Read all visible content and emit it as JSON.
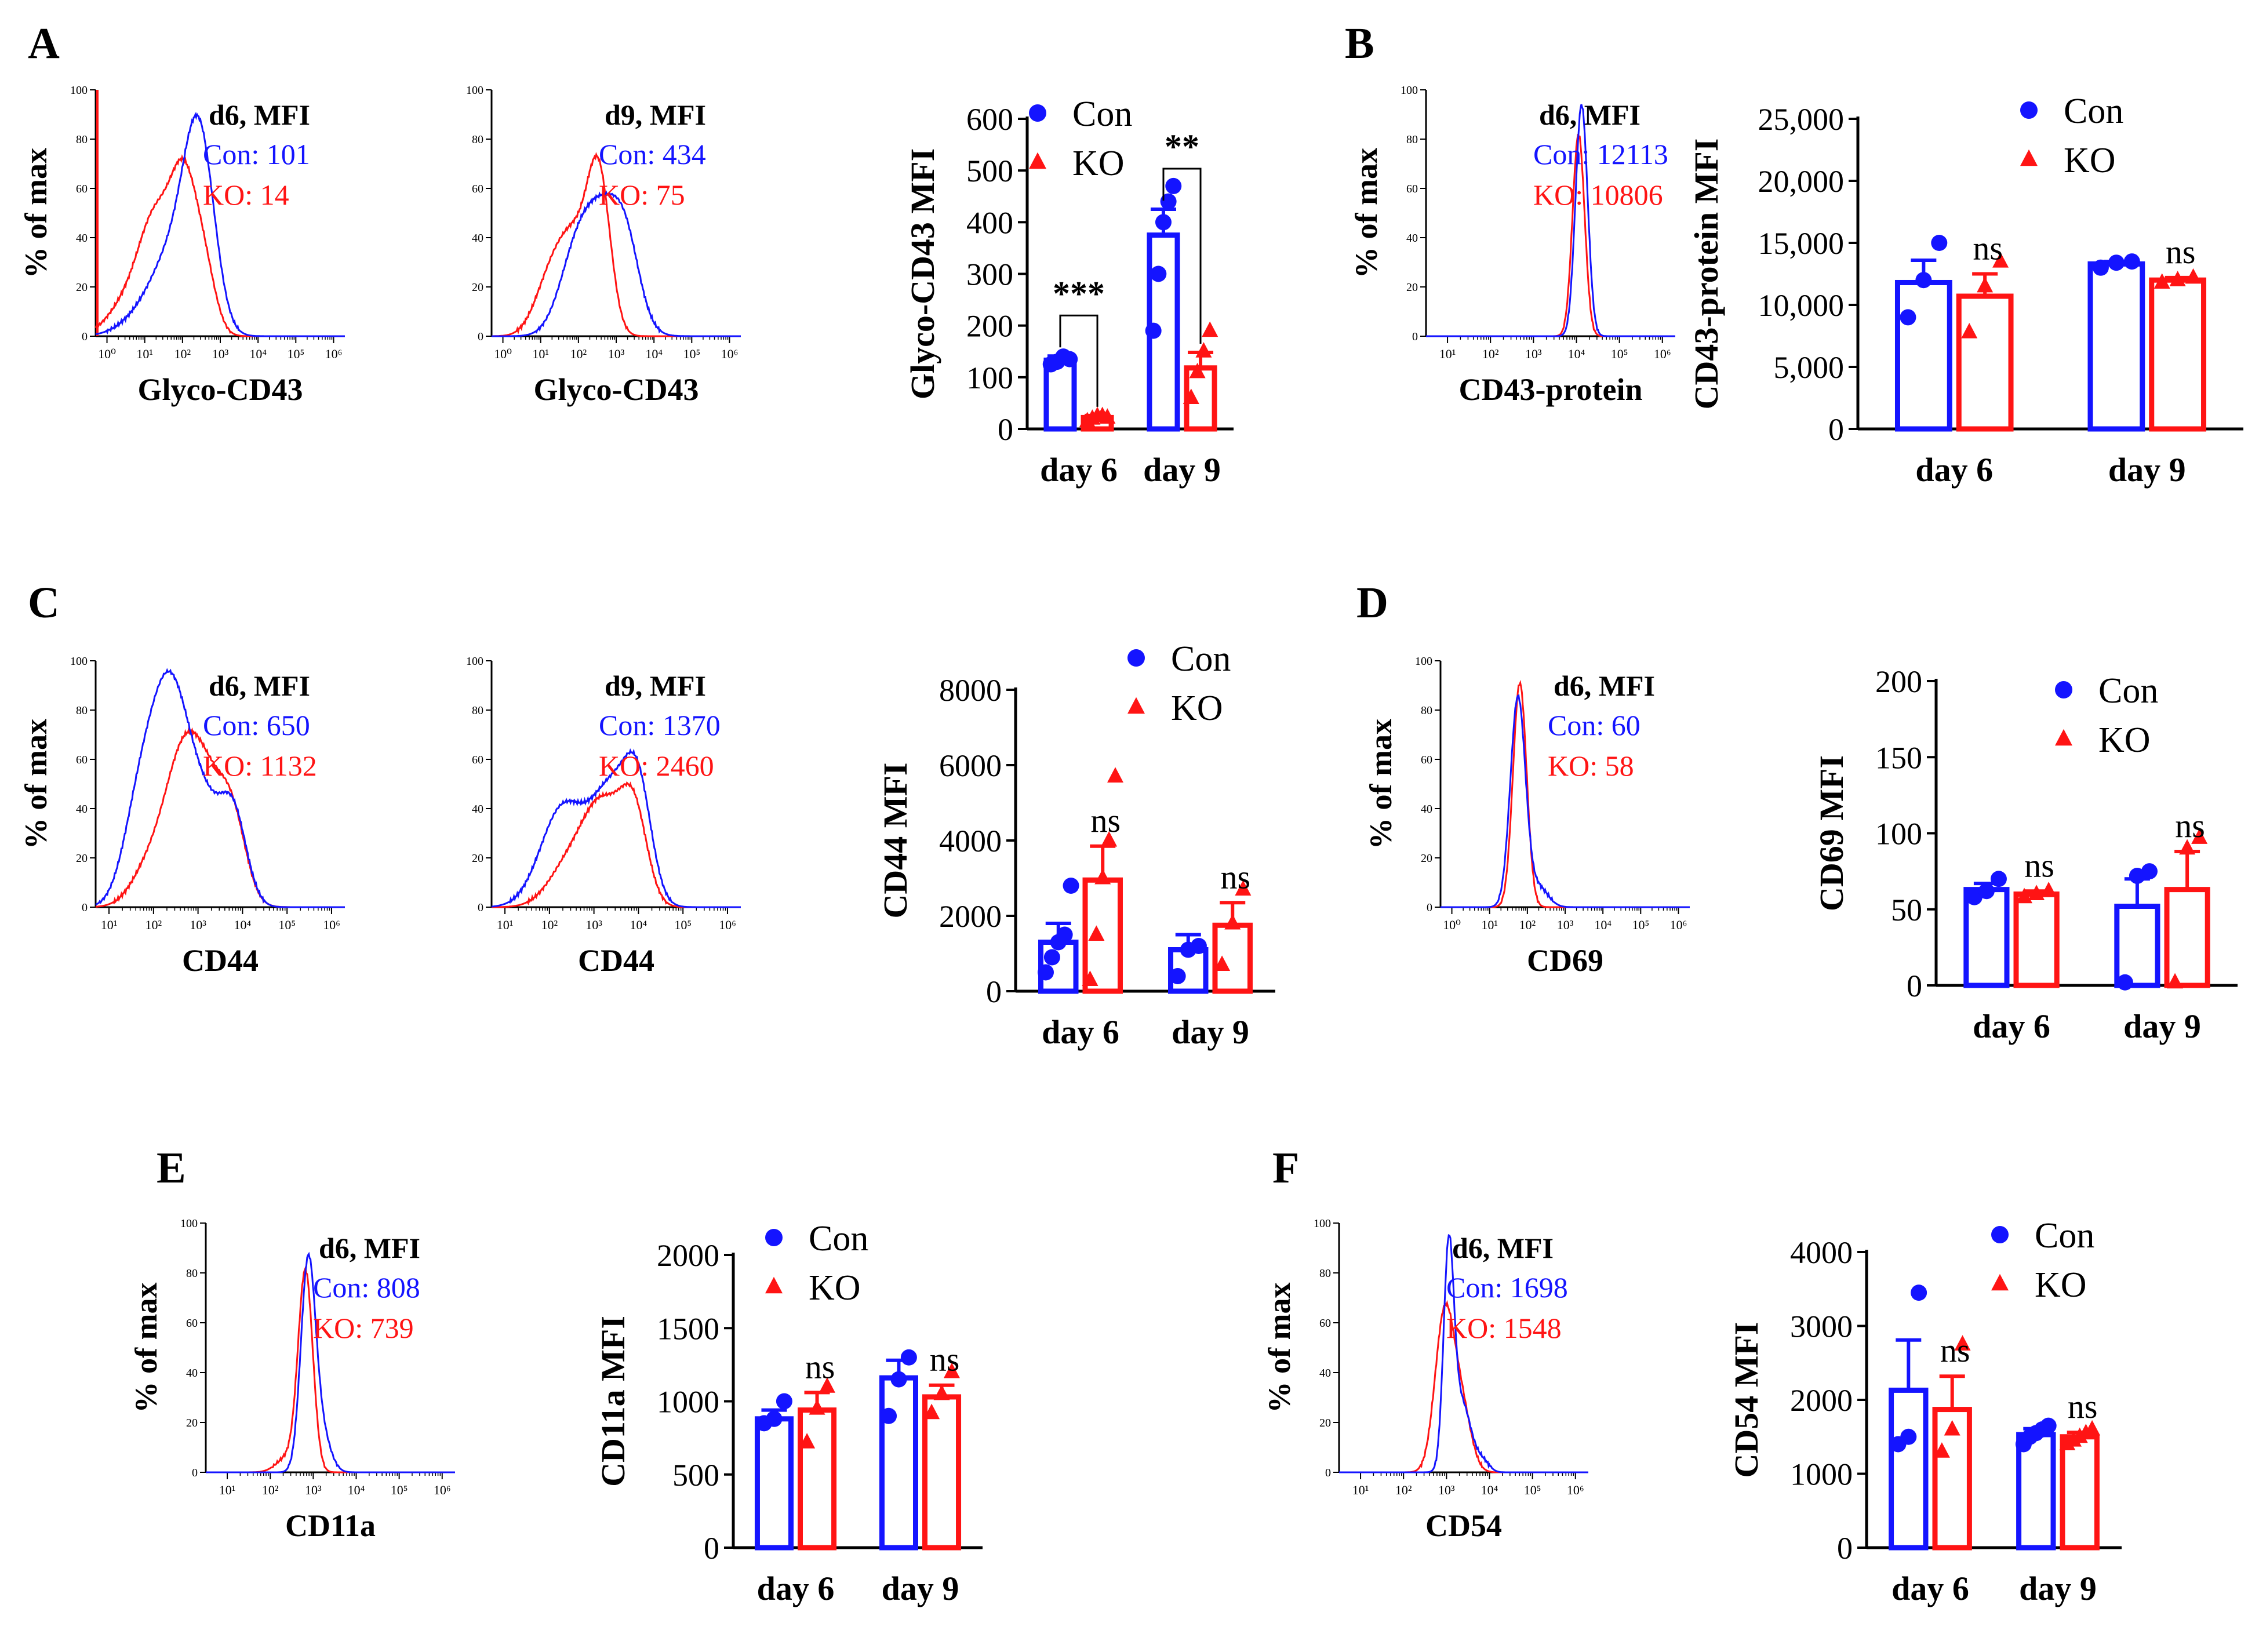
{
  "colors": {
    "con": "#1414ff",
    "ko": "#ff1414",
    "axis": "#000000"
  },
  "panels": [
    {
      "letter": "A",
      "histograms": [
        {
          "day_label": "d6, MFI",
          "con_label": "Con: 101",
          "ko_label": "KO:   14",
          "xlabel": "Glyco-CD43",
          "ylabel": "% of max",
          "x_log_range": [
            -0.3,
            6.3
          ],
          "x_tick_labels": [
            "10⁰",
            "10¹",
            "10²",
            "10³",
            "10⁴",
            "10⁵",
            "10⁶"
          ],
          "y_tick_labels": [
            "0",
            "20",
            "40",
            "60",
            "80",
            "100"
          ],
          "con_peaks": [
            {
              "x": 2.45,
              "h": 73,
              "w": 0.4
            },
            {
              "x": 1.8,
              "h": 30,
              "w": 0.55
            },
            {
              "x": 1.0,
              "h": 8,
              "w": 0.6
            }
          ],
          "ko_peaks": [
            {
              "x": 2.05,
              "h": 56,
              "w": 0.35
            },
            {
              "x": 1.3,
              "h": 45,
              "w": 0.45
            },
            {
              "x": 0.5,
              "h": 12,
              "w": 0.5
            },
            {
              "x": 2.6,
              "h": 22,
              "w": 0.3
            }
          ],
          "con_spike": 0,
          "ko_spike": 100
        },
        {
          "day_label": "d9, MFI",
          "con_label": "Con: 434",
          "ko_label": "KO:   75",
          "xlabel": "Glyco-CD43",
          "ylabel": "",
          "x_log_range": [
            -0.3,
            6.3
          ],
          "x_tick_labels": [
            "10⁰",
            "10¹",
            "10²",
            "10³",
            "10⁴",
            "10⁵",
            "10⁶"
          ],
          "y_tick_labels": [
            "0",
            "20",
            "40",
            "60",
            "80",
            "100"
          ],
          "con_peaks": [
            {
              "x": 2.7,
              "h": 48,
              "w": 0.55
            },
            {
              "x": 1.9,
              "h": 25,
              "w": 0.45
            },
            {
              "x": 3.3,
              "h": 20,
              "w": 0.35
            }
          ],
          "ko_peaks": [
            {
              "x": 2.55,
              "h": 58,
              "w": 0.3
            },
            {
              "x": 1.9,
              "h": 38,
              "w": 0.45
            },
            {
              "x": 1.2,
              "h": 18,
              "w": 0.4
            }
          ],
          "con_spike": 0,
          "ko_spike": 0
        }
      ],
      "bars": {
        "ylabel": "Glyco-CD43 MFI",
        "ylim": [
          0,
          600
        ],
        "y_tick_labels": [
          "0",
          "100",
          "200",
          "300",
          "400",
          "500",
          "600"
        ],
        "yticks": [
          0,
          100,
          200,
          300,
          400,
          500,
          600
        ],
        "categories": [
          "day 6",
          "day 9"
        ],
        "legend": [
          "Con",
          "KO"
        ],
        "series": [
          {
            "name": "Con",
            "values": [
              133,
              375
            ],
            "sem": [
              8,
              50
            ],
            "points": [
              [
                125,
                130,
                140,
                135
              ],
              [
                190,
                300,
                400,
                440,
                470
              ]
            ]
          },
          {
            "name": "KO",
            "values": [
              22,
              118
            ],
            "sem": [
              4,
              30
            ],
            "points": [
              [
                15,
                20,
                25,
                25,
                22
              ],
              [
                60,
                110,
                150,
                190
              ]
            ]
          }
        ],
        "annotations": [
          {
            "text": "***",
            "group": 0
          },
          {
            "text": "**",
            "group": 1
          }
        ]
      }
    },
    {
      "letter": "B",
      "histograms": [
        {
          "day_label": "d6, MFI",
          "con_label": "Con: 12113",
          "ko_label": "KO:  10806",
          "xlabel": "CD43-protein",
          "ylabel": "% of max",
          "x_log_range": [
            0.5,
            6.3
          ],
          "x_tick_labels": [
            "10¹",
            "10²",
            "10³",
            "10⁴",
            "10⁵",
            "10⁶"
          ],
          "y_tick_labels": [
            "0",
            "20",
            "40",
            "60",
            "80",
            "100"
          ],
          "con_peaks": [
            {
              "x": 4.12,
              "h": 94,
              "w": 0.14
            }
          ],
          "ko_peaks": [
            {
              "x": 4.05,
              "h": 82,
              "w": 0.14
            }
          ],
          "con_spike": 0,
          "ko_spike": 0
        }
      ],
      "bars": {
        "ylabel": "CD43-protein MFI",
        "ylim": [
          0,
          25000
        ],
        "y_tick_labels": [
          "0",
          "5,000",
          "10,000",
          "15,000",
          "20,000",
          "25,000"
        ],
        "yticks": [
          0,
          5000,
          10000,
          15000,
          20000,
          25000
        ],
        "categories": [
          "day 6",
          "day 9"
        ],
        "legend": [
          "Con",
          "KO"
        ],
        "series": [
          {
            "name": "Con",
            "values": [
              11800,
              13300
            ],
            "sem": [
              1800,
              200
            ],
            "points": [
              [
                9000,
                12000,
                15000
              ],
              [
                13000,
                13400,
                13500
              ]
            ]
          },
          {
            "name": "KO",
            "values": [
              10700,
              12000
            ],
            "sem": [
              1800,
              200
            ],
            "points": [
              [
                7800,
                11500,
                13500
              ],
              [
                11800,
                12000,
                12200
              ]
            ]
          }
        ],
        "annotations": [
          {
            "text": "ns",
            "group": 0
          },
          {
            "text": "ns",
            "group": 1
          }
        ]
      }
    },
    {
      "letter": "C",
      "histograms": [
        {
          "day_label": "d6, MFI",
          "con_label": "Con: 650",
          "ko_label": "KO: 1132",
          "xlabel": "CD44",
          "ylabel": "% of max",
          "x_log_range": [
            0.7,
            6.3
          ],
          "x_tick_labels": [
            "10¹",
            "10²",
            "10³",
            "10⁴",
            "10⁵",
            "10⁶"
          ],
          "y_tick_labels": [
            "0",
            "20",
            "40",
            "60",
            "80",
            "100"
          ],
          "con_peaks": [
            {
              "x": 2.1,
              "h": 55,
              "w": 0.4
            },
            {
              "x": 2.5,
              "h": 45,
              "w": 0.35
            },
            {
              "x": 3.1,
              "h": 40,
              "w": 0.4
            },
            {
              "x": 3.8,
              "h": 35,
              "w": 0.3
            },
            {
              "x": 1.6,
              "h": 25,
              "w": 0.35
            }
          ],
          "ko_peaks": [
            {
              "x": 2.6,
              "h": 45,
              "w": 0.4
            },
            {
              "x": 3.2,
              "h": 45,
              "w": 0.45
            },
            {
              "x": 3.8,
              "h": 25,
              "w": 0.3
            },
            {
              "x": 1.9,
              "h": 15,
              "w": 0.4
            }
          ],
          "con_spike": 0,
          "ko_spike": 0
        },
        {
          "day_label": "d9, MFI",
          "con_label": "Con: 1370",
          "ko_label": "KO:  2460",
          "xlabel": "CD44",
          "ylabel": "",
          "x_log_range": [
            0.7,
            6.3
          ],
          "x_tick_labels": [
            "10¹",
            "10²",
            "10³",
            "10⁴",
            "10⁵",
            "10⁶"
          ],
          "y_tick_labels": [
            "0",
            "20",
            "40",
            "60",
            "80",
            "100"
          ],
          "con_peaks": [
            {
              "x": 2.3,
              "h": 40,
              "w": 0.5
            },
            {
              "x": 3.4,
              "h": 45,
              "w": 0.45
            },
            {
              "x": 4.0,
              "h": 40,
              "w": 0.3
            }
          ],
          "ko_peaks": [
            {
              "x": 3.2,
              "h": 40,
              "w": 0.45
            },
            {
              "x": 3.9,
              "h": 35,
              "w": 0.3
            },
            {
              "x": 2.4,
              "h": 15,
              "w": 0.45
            }
          ],
          "con_spike": 0,
          "ko_spike": 0
        }
      ],
      "bars": {
        "ylabel": "CD44 MFI",
        "ylim": [
          0,
          8000
        ],
        "y_tick_labels": [
          "0",
          "2000",
          "4000",
          "6000",
          "8000"
        ],
        "yticks": [
          0,
          2000,
          4000,
          6000,
          8000
        ],
        "categories": [
          "day 6",
          "day 9"
        ],
        "legend": [
          "Con",
          "KO"
        ],
        "series": [
          {
            "name": "Con",
            "values": [
              1300,
              1100
            ],
            "sem": [
              500,
              400
            ],
            "points": [
              [
                500,
                900,
                1300,
                1500,
                2800
              ],
              [
                400,
                1100,
                1200
              ]
            ]
          },
          {
            "name": "KO",
            "values": [
              2950,
              1750
            ],
            "sem": [
              900,
              600
            ],
            "points": [
              [
                300,
                1500,
                3000,
                4000,
                5700
              ],
              [
                700,
                1800,
                2700
              ]
            ]
          }
        ],
        "annotations": [
          {
            "text": "ns",
            "group": 0
          },
          {
            "text": "ns",
            "group": 1
          }
        ]
      }
    },
    {
      "letter": "D",
      "histograms": [
        {
          "day_label": "d6, MFI",
          "con_label": "Con: 60",
          "ko_label": "KO: 58",
          "xlabel": "CD69",
          "ylabel": "% of max",
          "x_log_range": [
            -0.3,
            6.3
          ],
          "x_tick_labels": [
            "10⁰",
            "10¹",
            "10²",
            "10³",
            "10⁴",
            "10⁵",
            "10⁶"
          ],
          "y_tick_labels": [
            "0",
            "20",
            "40",
            "60",
            "80",
            "100"
          ],
          "con_peaks": [
            {
              "x": 1.75,
              "h": 85,
              "w": 0.2
            },
            {
              "x": 2.3,
              "h": 8,
              "w": 0.25
            }
          ],
          "ko_peaks": [
            {
              "x": 1.8,
              "h": 91,
              "w": 0.18
            }
          ],
          "con_spike": 0,
          "ko_spike": 0
        }
      ],
      "bars": {
        "ylabel": "CD69 MFI",
        "ylim": [
          0,
          200
        ],
        "y_tick_labels": [
          "0",
          "50",
          "100",
          "150",
          "200"
        ],
        "yticks": [
          0,
          50,
          100,
          150,
          200
        ],
        "categories": [
          "day 6",
          "day 9"
        ],
        "legend": [
          "Con",
          "KO"
        ],
        "series": [
          {
            "name": "Con",
            "values": [
              63,
              52
            ],
            "sem": [
              4,
              18
            ],
            "points": [
              [
                58,
                62,
                70
              ],
              [
                2,
                72,
                75
              ]
            ]
          },
          {
            "name": "KO",
            "values": [
              60,
              63
            ],
            "sem": [
              2,
              25
            ],
            "points": [
              [
                58,
                60,
                62
              ],
              [
                2,
                90,
                97
              ]
            ]
          }
        ],
        "annotations": [
          {
            "text": "ns",
            "group": 0
          },
          {
            "text": "ns",
            "group": 1
          }
        ]
      }
    },
    {
      "letter": "E",
      "histograms": [
        {
          "day_label": "d6, MFI",
          "con_label": "Con: 808",
          "ko_label": "KO:  739",
          "xlabel": "CD11a",
          "ylabel": "% of max",
          "x_log_range": [
            0.5,
            6.3
          ],
          "x_tick_labels": [
            "10¹",
            "10²",
            "10³",
            "10⁴",
            "10⁵",
            "10⁶"
          ],
          "y_tick_labels": [
            "0",
            "20",
            "40",
            "60",
            "80",
            "100"
          ],
          "con_peaks": [
            {
              "x": 2.88,
              "h": 83,
              "w": 0.17
            },
            {
              "x": 3.2,
              "h": 15,
              "w": 0.2
            }
          ],
          "ko_peaks": [
            {
              "x": 2.82,
              "h": 80,
              "w": 0.17
            },
            {
              "x": 2.4,
              "h": 6,
              "w": 0.25
            }
          ],
          "con_spike": 0,
          "ko_spike": 0
        }
      ],
      "bars": {
        "ylabel": "CD11a MFI",
        "ylim": [
          0,
          2000
        ],
        "y_tick_labels": [
          "0",
          "500",
          "1000",
          "1500",
          "2000"
        ],
        "yticks": [
          0,
          500,
          1000,
          1500,
          2000
        ],
        "categories": [
          "day 6",
          "day 9"
        ],
        "legend": [
          "Con",
          "KO"
        ],
        "series": [
          {
            "name": "Con",
            "values": [
              880,
              1160
            ],
            "sem": [
              60,
              120
            ],
            "points": [
              [
                850,
                880,
                1000
              ],
              [
                900,
                1150,
                1300
              ]
            ]
          },
          {
            "name": "KO",
            "values": [
              940,
              1030
            ],
            "sem": [
              120,
              80
            ],
            "points": [
              [
                720,
                950,
                1100
              ],
              [
                920,
                1050,
                1200
              ]
            ]
          }
        ],
        "annotations": [
          {
            "text": "ns",
            "group": 0
          },
          {
            "text": "ns",
            "group": 1
          }
        ]
      }
    },
    {
      "letter": "F",
      "histograms": [
        {
          "day_label": "d6, MFI",
          "con_label": "Con: 1698",
          "ko_label": "KO:  1548",
          "xlabel": "CD54",
          "ylabel": "% of max",
          "x_log_range": [
            0.5,
            6.3
          ],
          "x_tick_labels": [
            "10¹",
            "10²",
            "10³",
            "10⁴",
            "10⁵",
            "10⁶"
          ],
          "y_tick_labels": [
            "0",
            "20",
            "40",
            "60",
            "80",
            "100"
          ],
          "con_peaks": [
            {
              "x": 3.05,
              "h": 84,
              "w": 0.12
            },
            {
              "x": 3.35,
              "h": 28,
              "w": 0.22
            },
            {
              "x": 3.85,
              "h": 4,
              "w": 0.15
            }
          ],
          "ko_peaks": [
            {
              "x": 2.95,
              "h": 62,
              "w": 0.22
            },
            {
              "x": 3.35,
              "h": 25,
              "w": 0.22
            }
          ],
          "con_spike": 0,
          "ko_spike": 0
        }
      ],
      "bars": {
        "ylabel": "CD54 MFI",
        "ylim": [
          0,
          4000
        ],
        "y_tick_labels": [
          "0",
          "1000",
          "2000",
          "3000",
          "4000"
        ],
        "yticks": [
          0,
          1000,
          2000,
          3000,
          4000
        ],
        "categories": [
          "day 6",
          "day 9"
        ],
        "legend": [
          "Con",
          "KO"
        ],
        "series": [
          {
            "name": "Con",
            "values": [
              2130,
              1530
            ],
            "sem": [
              680,
              80
            ],
            "points": [
              [
                1400,
                1500,
                3450
              ],
              [
                1400,
                1500,
                1550,
                1600,
                1650
              ]
            ]
          },
          {
            "name": "KO",
            "values": [
              1870,
              1500
            ],
            "sem": [
              450,
              60
            ],
            "points": [
              [
                1300,
                1600,
                2750
              ],
              [
                1400,
                1450,
                1500,
                1550,
                1600
              ]
            ]
          }
        ],
        "annotations": [
          {
            "text": "ns",
            "group": 0
          },
          {
            "text": "ns",
            "group": 1
          }
        ]
      }
    }
  ]
}
